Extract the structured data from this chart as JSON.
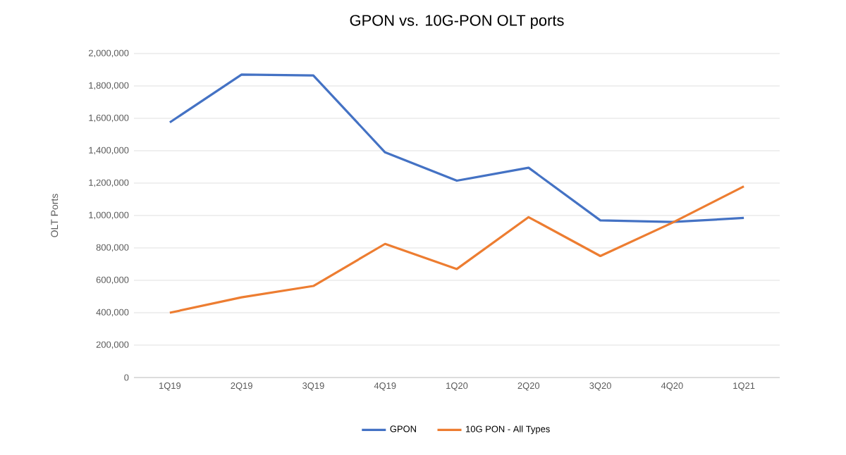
{
  "chart_data": {
    "type": "line",
    "title": "GPON vs. 10G-PON OLT ports",
    "ylabel": "OLT Ports",
    "categories": [
      "1Q19",
      "2Q19",
      "3Q19",
      "4Q19",
      "1Q20",
      "2Q20",
      "3Q20",
      "4Q20",
      "1Q21"
    ],
    "series": [
      {
        "name": "GPON",
        "color": "#4472c4",
        "values": [
          1575000,
          1870000,
          1865000,
          1390000,
          1215000,
          1295000,
          970000,
          960000,
          985000
        ]
      },
      {
        "name": "10G PON - All Types",
        "color": "#ed7d31",
        "values": [
          400000,
          495000,
          565000,
          825000,
          670000,
          990000,
          750000,
          955000,
          1180000
        ]
      }
    ],
    "ylim": [
      0,
      2000000
    ],
    "yticks": [
      {
        "value": 0,
        "label": "0"
      },
      {
        "value": 200000,
        "label": "200,000"
      },
      {
        "value": 400000,
        "label": "400,000"
      },
      {
        "value": 600000,
        "label": "600,000"
      },
      {
        "value": 800000,
        "label": "800,000"
      },
      {
        "value": 1000000,
        "label": "1,000,000"
      },
      {
        "value": 1200000,
        "label": "1,200,000"
      },
      {
        "value": 1400000,
        "label": "1,400,000"
      },
      {
        "value": 1600000,
        "label": "1,600,000"
      },
      {
        "value": 1800000,
        "label": "1,800,000"
      },
      {
        "value": 2000000,
        "label": "2,000,000"
      }
    ],
    "grid": "y",
    "legend": "bottom",
    "marker": "none",
    "line_style": "solid"
  }
}
